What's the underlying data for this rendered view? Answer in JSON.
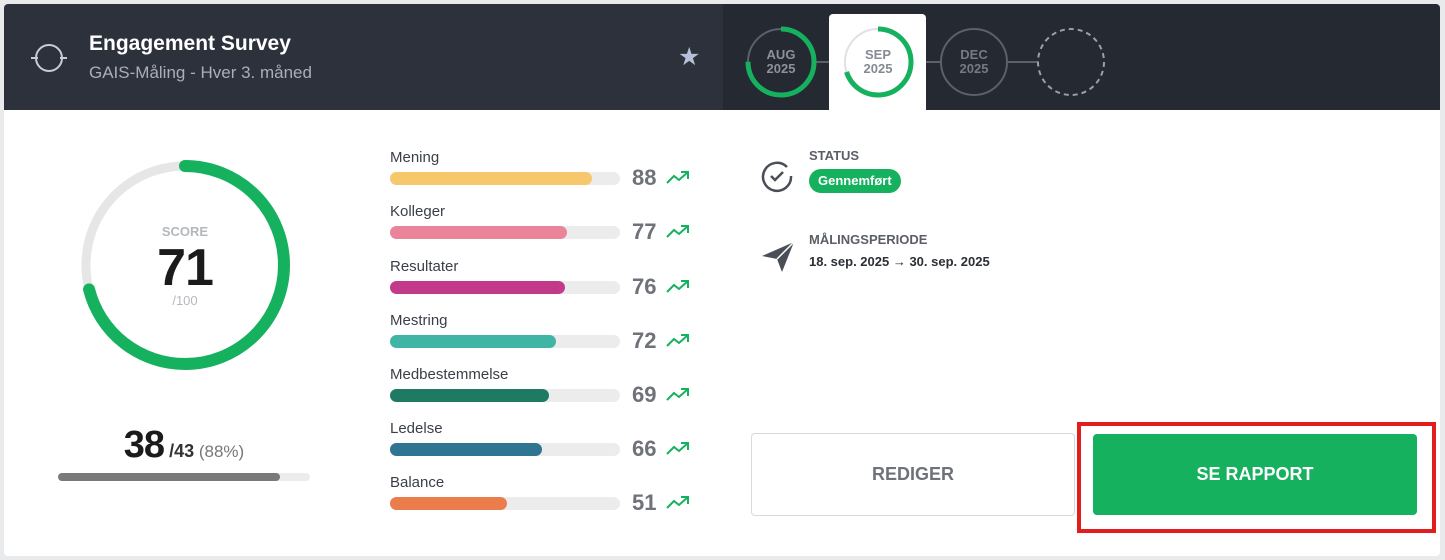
{
  "header": {
    "title": "Engagement Survey",
    "subtitle": "GAIS-Måling - Hver 3. måned",
    "favorite_icon": "star-icon",
    "survey_icon": "target-icon"
  },
  "timeline": {
    "periods": [
      {
        "month": "AUG",
        "year": "2025",
        "progress": 0.75
      },
      {
        "month": "SEP",
        "year": "2025",
        "progress": 0.7,
        "selected": true
      },
      {
        "month": "DEC",
        "year": "2025",
        "progress": 0
      },
      {
        "month": "",
        "year": "",
        "progress": 0,
        "placeholder": true
      }
    ]
  },
  "score": {
    "label": "SCORE",
    "value": "71",
    "max": "/100",
    "fraction": 0.71,
    "color": "#16b15e"
  },
  "responses": {
    "count": "38",
    "total": " /43",
    "percent": " (88%)",
    "fraction": 0.88
  },
  "categories": [
    {
      "name": "Mening",
      "value": "88",
      "color": "#f7c76c",
      "fraction": 0.88
    },
    {
      "name": "Kolleger",
      "value": "77",
      "color": "#e9849b",
      "fraction": 0.77
    },
    {
      "name": "Resultater",
      "value": "76",
      "color": "#c23b8a",
      "fraction": 0.76
    },
    {
      "name": "Mestring",
      "value": "72",
      "color": "#40b5a5",
      "fraction": 0.72
    },
    {
      "name": "Medbestemmelse",
      "value": "69",
      "color": "#1f7a63",
      "fraction": 0.69
    },
    {
      "name": "Ledelse",
      "value": "66",
      "color": "#2f7491",
      "fraction": 0.66
    },
    {
      "name": "Balance",
      "value": "51",
      "color": "#eb7c4b",
      "fraction": 0.51
    }
  ],
  "trend_icon": "trend-up-icon",
  "status": {
    "label": "STATUS",
    "value": "Gennemført",
    "icon": "check-circle-icon"
  },
  "period": {
    "label": "MÅLINGSPERIODE",
    "value": "18. sep. 2025 → 30. sep. 2025",
    "icon": "paper-plane-icon"
  },
  "actions": {
    "edit_label": "REDIGER",
    "report_label": "SE RAPPORT"
  },
  "colors": {
    "header_bg": "#2c313c",
    "accent": "#16b15e",
    "highlight": "#e11d1d"
  }
}
